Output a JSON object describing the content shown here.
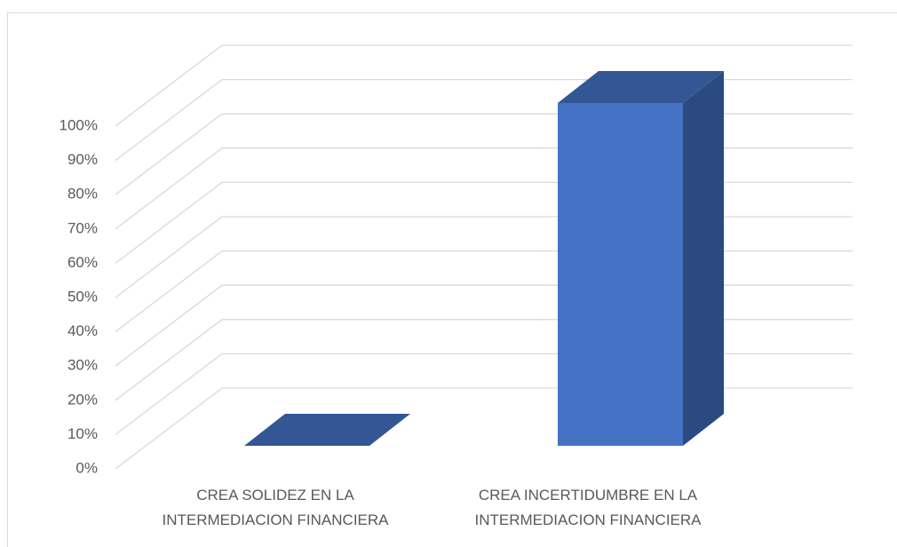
{
  "chart_data": {
    "type": "bar3d",
    "categories": [
      "CREA SOLIDEZ EN LA INTERMEDIACION FINANCIERA",
      "CREA INCERTIDUMBRE EN LA INTERMEDIACION FINANCIERA"
    ],
    "values": [
      0,
      100
    ],
    "color": "#4472c4",
    "ylim": [
      0,
      100
    ],
    "yticks": [
      {
        "value": 0,
        "label": "0%"
      },
      {
        "value": 10,
        "label": "10%"
      },
      {
        "value": 20,
        "label": "20%"
      },
      {
        "value": 30,
        "label": "30%"
      },
      {
        "value": 40,
        "label": "40%"
      },
      {
        "value": 50,
        "label": "50%"
      },
      {
        "value": 60,
        "label": "60%"
      },
      {
        "value": 70,
        "label": "70%"
      },
      {
        "value": 80,
        "label": "80%"
      },
      {
        "value": 90,
        "label": "90%"
      },
      {
        "value": 100,
        "label": "100%"
      }
    ],
    "grid": true
  }
}
